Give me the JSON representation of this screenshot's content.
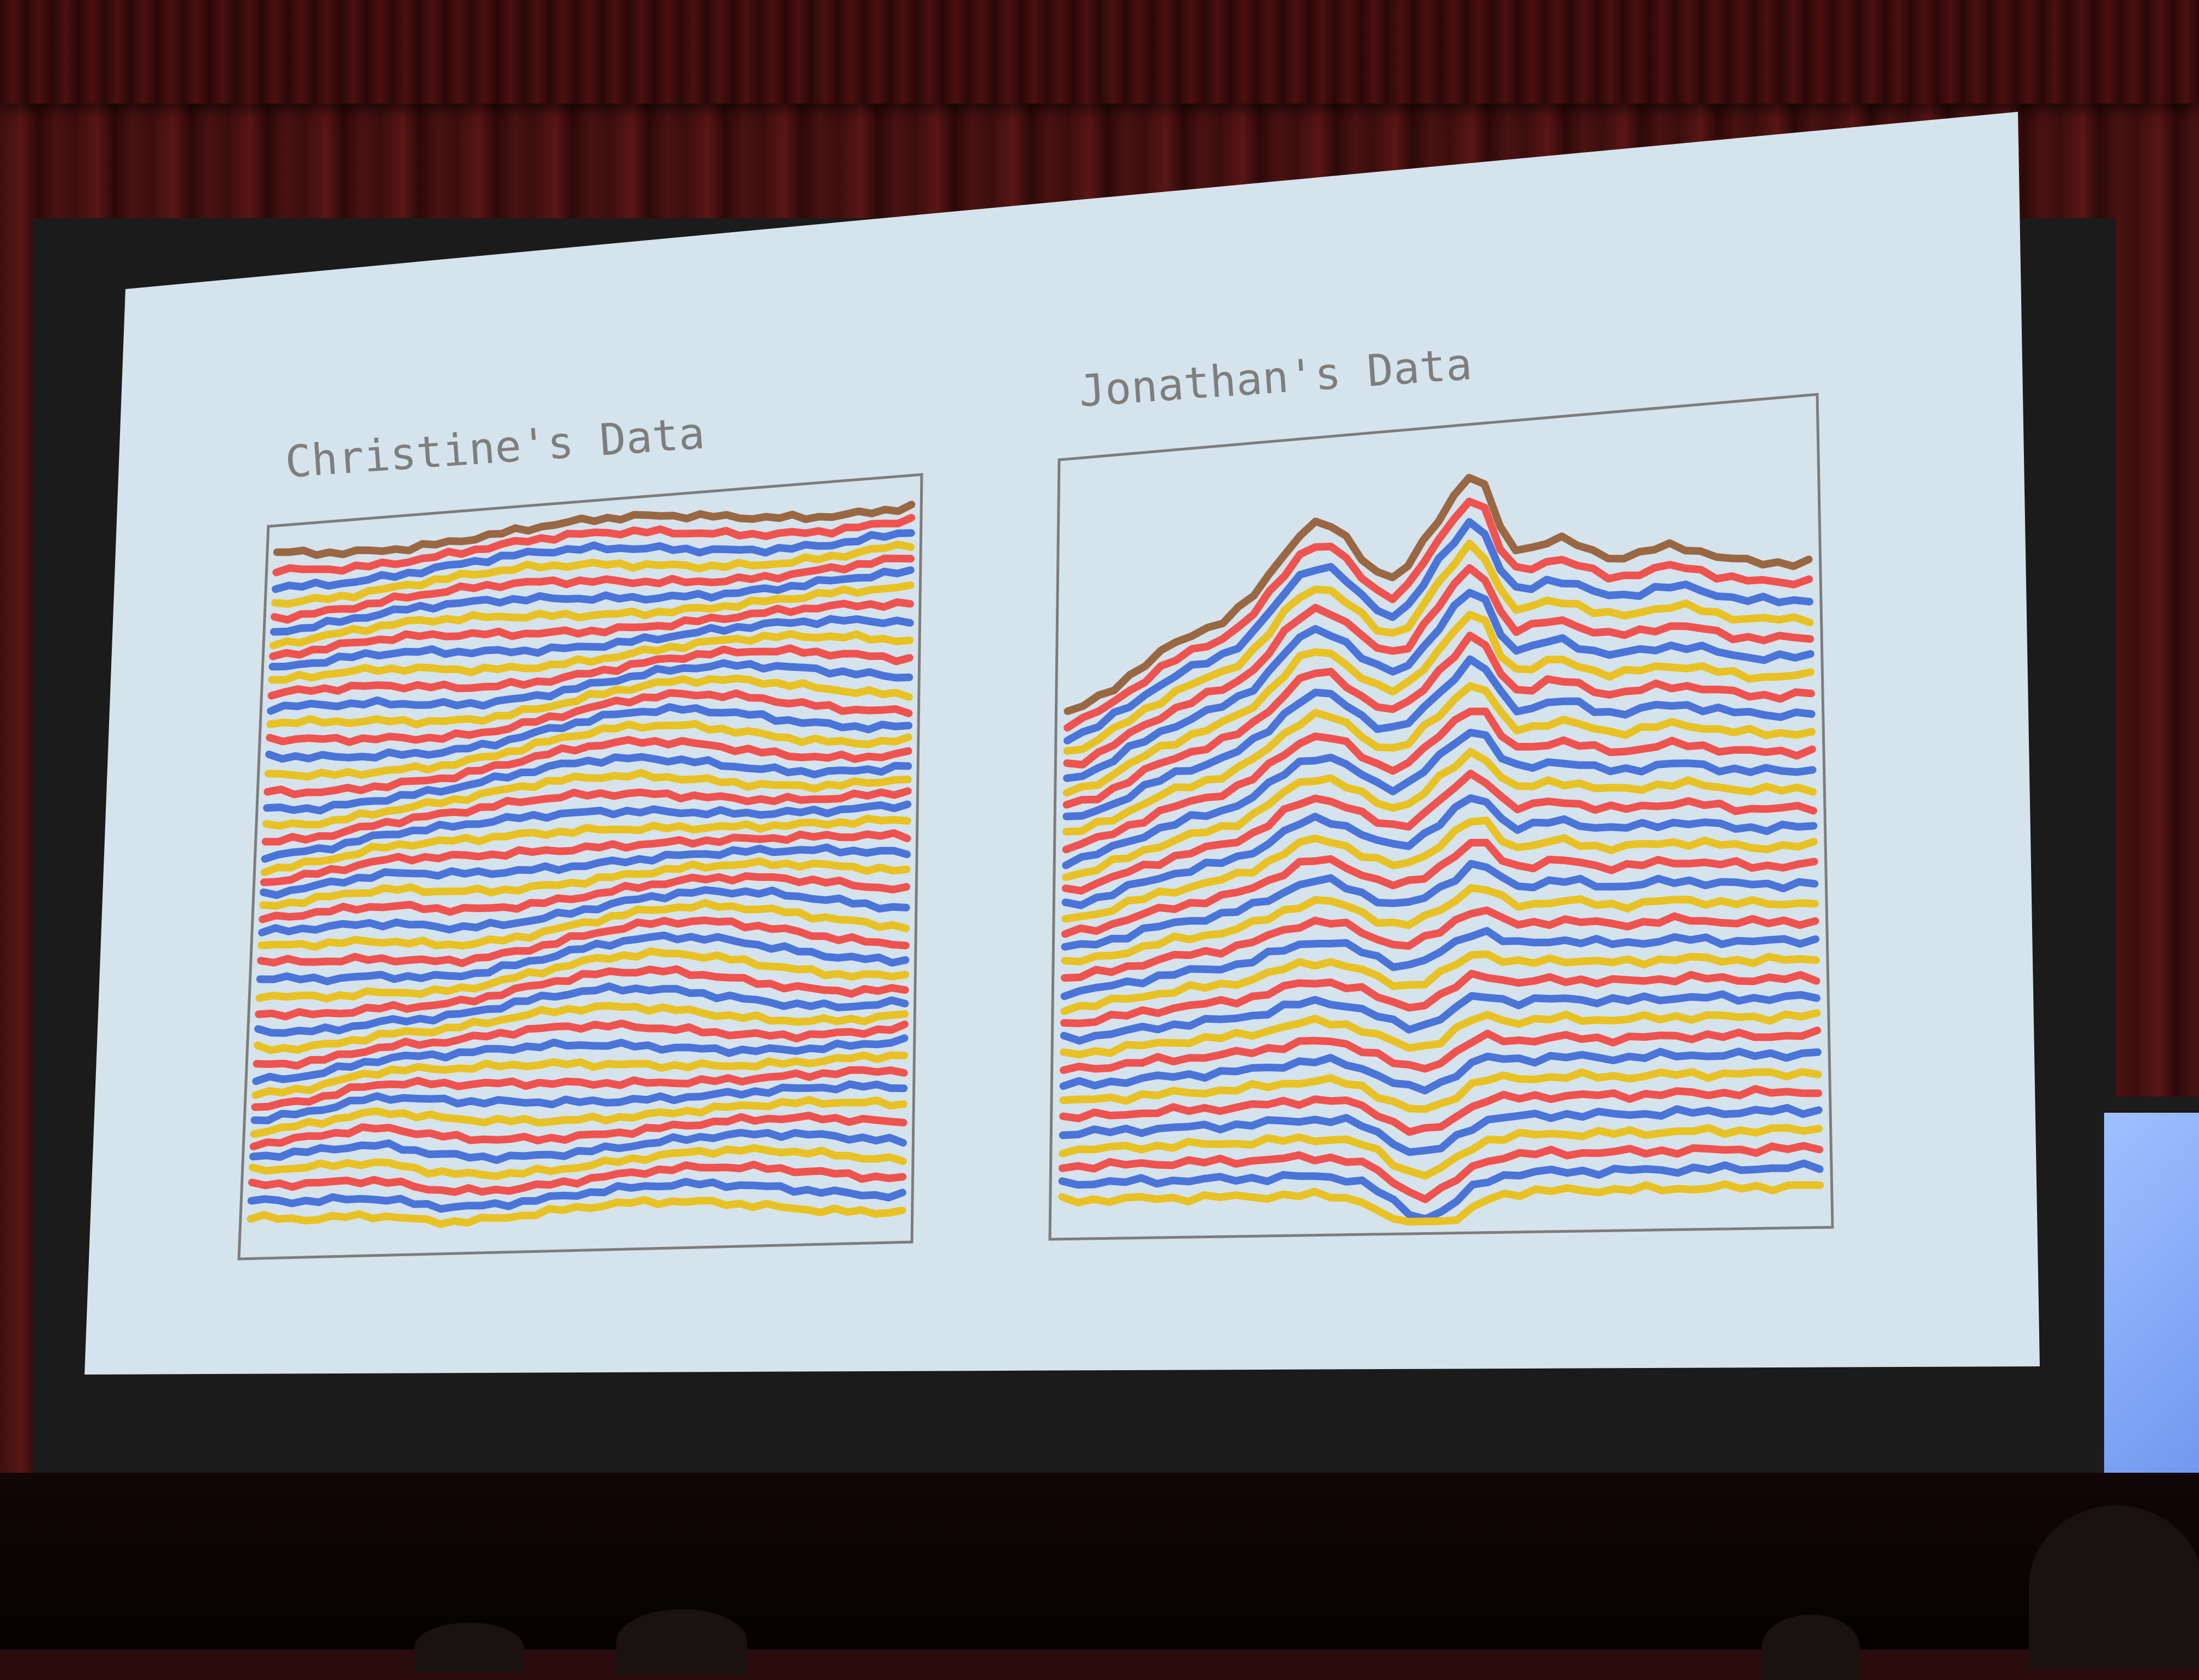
{
  "slide": {
    "panels": [
      {
        "title": "Christine's Data"
      },
      {
        "title": "Jonathan's Data"
      }
    ]
  },
  "colors": {
    "red": "#ef5350",
    "blue": "#4a74d8",
    "yellow": "#e8c224",
    "brown": "#9a6743",
    "slide_background": "#d5e3ec",
    "frame": "#7d7d7d"
  }
}
